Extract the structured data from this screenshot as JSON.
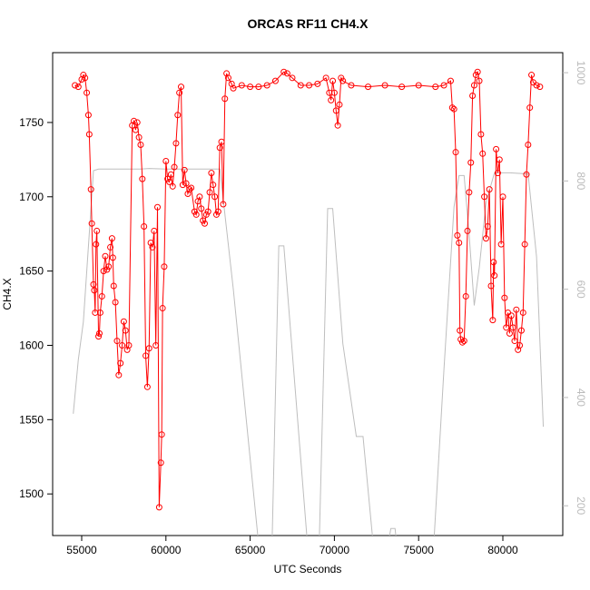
{
  "chart_data": {
    "type": "line",
    "title": "ORCAS RF11 CH4.X",
    "x_label": "UTC Seconds",
    "y_label": "CH4.X",
    "xlim": [
      53276,
      83556
    ],
    "xticks": [
      55000,
      60000,
      65000,
      70000,
      75000,
      80000
    ],
    "ylim": [
      1472,
      1797
    ],
    "yticks": [
      1500,
      1550,
      1600,
      1650,
      1700,
      1750
    ],
    "y2lim": [
      145,
      1037
    ],
    "y2_inverted": true,
    "y2ticks": [
      200,
      400,
      600,
      800,
      1000
    ],
    "series": [
      {
        "color": "#ff0000",
        "markers": true,
        "x": [
          54600,
          54800,
          55000,
          55100,
          55200,
          55300,
          55400,
          55450,
          55550,
          55600,
          55700,
          55750,
          55800,
          55850,
          55900,
          56000,
          56050,
          56100,
          56200,
          56300,
          56400,
          56500,
          56600,
          56700,
          56800,
          56850,
          56900,
          57000,
          57100,
          57200,
          57300,
          57400,
          57500,
          57600,
          57700,
          57800,
          58000,
          58100,
          58200,
          58300,
          58400,
          58500,
          58600,
          58700,
          58800,
          58900,
          59000,
          59100,
          59200,
          59300,
          59400,
          59500,
          59600,
          59700,
          59750,
          59800,
          59900,
          60000,
          60100,
          60200,
          60300,
          60400,
          60500,
          60600,
          60700,
          60800,
          60900,
          61000,
          61100,
          61200,
          61300,
          61400,
          61500,
          61700,
          61800,
          61900,
          62000,
          62100,
          62200,
          62300,
          62400,
          62500,
          62600,
          62700,
          62800,
          62900,
          63000,
          63100,
          63200,
          63300,
          63400,
          63500,
          63600,
          63700,
          63900,
          64000,
          64500,
          65000,
          65500,
          66000,
          66500,
          67000,
          67200,
          67500,
          68000,
          68500,
          69000,
          69500,
          69700,
          69800,
          69900,
          70000,
          70100,
          70200,
          70300,
          70400,
          70500,
          71000,
          72000,
          73000,
          74000,
          75000,
          76000,
          76500,
          76900,
          77000,
          77100,
          77200,
          77300,
          77400,
          77450,
          77500,
          77600,
          77700,
          77800,
          77900,
          78000,
          78100,
          78200,
          78300,
          78400,
          78500,
          78600,
          78700,
          78800,
          78900,
          79000,
          79100,
          79200,
          79300,
          79400,
          79450,
          79500,
          79600,
          79700,
          79800,
          79900,
          80000,
          80100,
          80200,
          80300,
          80400,
          80500,
          80600,
          80700,
          80800,
          80900,
          81000,
          81100,
          81200,
          81300,
          81400,
          81500,
          81600,
          81700,
          81800,
          82000,
          82200
        ],
        "values": [
          1775,
          1774,
          1779,
          1782,
          1780,
          1770,
          1755,
          1742,
          1705,
          1682,
          1641,
          1637,
          1622,
          1668,
          1677,
          1606,
          1608,
          1622,
          1633,
          1650,
          1660,
          1651,
          1653,
          1666,
          1672,
          1659,
          1640,
          1629,
          1603,
          1580,
          1588,
          1600,
          1616,
          1610,
          1597,
          1600,
          1748,
          1751,
          1745,
          1750,
          1740,
          1735,
          1712,
          1680,
          1593,
          1572,
          1598,
          1669,
          1666,
          1677,
          1600,
          1693,
          1491,
          1521,
          1540,
          1625,
          1653,
          1724,
          1712,
          1710,
          1715,
          1707,
          1720,
          1736,
          1755,
          1770,
          1774,
          1708,
          1718,
          1709,
          1702,
          1705,
          1706,
          1690,
          1688,
          1697,
          1700,
          1692,
          1684,
          1682,
          1688,
          1690,
          1703,
          1716,
          1708,
          1700,
          1688,
          1690,
          1733,
          1737,
          1695,
          1766,
          1783,
          1780,
          1776,
          1773,
          1775,
          1774,
          1774,
          1775,
          1778,
          1784,
          1783,
          1780,
          1775,
          1775,
          1776,
          1780,
          1770,
          1765,
          1778,
          1770,
          1758,
          1748,
          1762,
          1780,
          1778,
          1775,
          1774,
          1775,
          1774,
          1775,
          1774,
          1775,
          1778,
          1760,
          1759,
          1730,
          1674,
          1669,
          1610,
          1604,
          1602,
          1603,
          1633,
          1677,
          1703,
          1723,
          1768,
          1775,
          1782,
          1784,
          1778,
          1742,
          1729,
          1700,
          1672,
          1680,
          1705,
          1640,
          1617,
          1656,
          1647,
          1732,
          1716,
          1725,
          1668,
          1700,
          1632,
          1612,
          1622,
          1608,
          1620,
          1612,
          1603,
          1624,
          1597,
          1600,
          1610,
          1622,
          1668,
          1715,
          1735,
          1760,
          1782,
          1777,
          1775,
          1774
        ]
      },
      {
        "color": "#bebebe",
        "markers": false,
        "axis": "y2",
        "x": [
          54500,
          54800,
          55100,
          55700,
          56000,
          58500,
          59000,
          60000,
          63200,
          64000,
          65500,
          66300,
          66700,
          67000,
          68400,
          69100,
          69600,
          69900,
          70500,
          71300,
          71700,
          72300,
          73200,
          73350,
          73600,
          73700,
          75900,
          76500,
          77100,
          77400,
          77700,
          78000,
          78300,
          78600,
          79000,
          79500,
          80400,
          81500,
          82000,
          82400
        ],
        "values": [
          370,
          470,
          540,
          819,
          822,
          822,
          823,
          822,
          822,
          600,
          130,
          130,
          680,
          680,
          130,
          130,
          749,
          749,
          500,
          328,
          328,
          130,
          130,
          158,
          158,
          130,
          130,
          450,
          752,
          810,
          810,
          700,
          570,
          640,
          760,
          815,
          815,
          813,
          660,
          346
        ]
      }
    ]
  }
}
